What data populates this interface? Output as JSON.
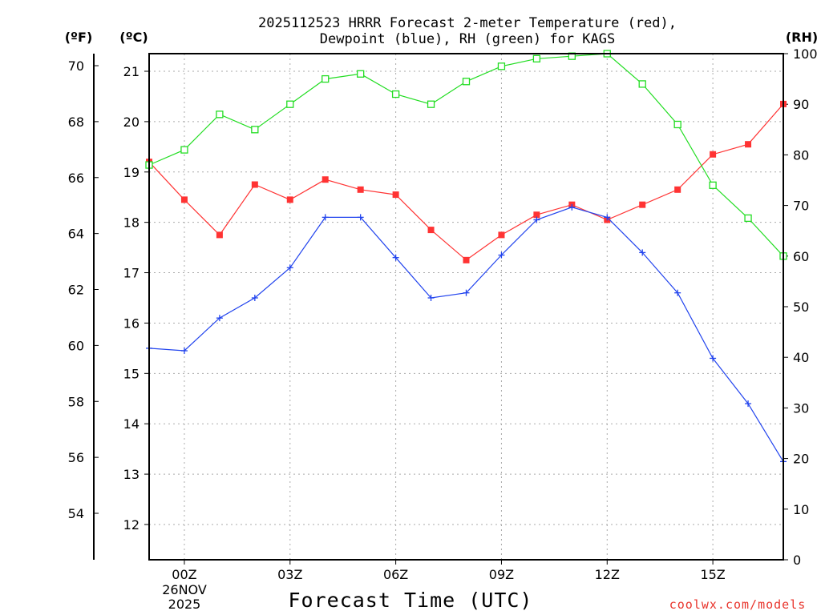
{
  "chart_data": {
    "type": "line",
    "title_line1": "2025112523 HRRR Forecast 2-meter Temperature (red),",
    "title_line2": "Dewpoint (blue), RH (green) for KAGS",
    "xlabel": "Forecast Time (UTC)",
    "credit": "coolwx.com/models",
    "unit_labels": {
      "fahrenheit": "(ºF)",
      "celsius": "(ºC)",
      "rh": "(RH)"
    },
    "x_range": [
      -1,
      17
    ],
    "x_ticks": [
      {
        "hour": 0,
        "label": "00Z"
      },
      {
        "hour": 3,
        "label": "03Z"
      },
      {
        "hour": 6,
        "label": "06Z"
      },
      {
        "hour": 9,
        "label": "09Z"
      },
      {
        "hour": 12,
        "label": "12Z"
      },
      {
        "hour": 15,
        "label": "15Z"
      }
    ],
    "date_label": {
      "hour": 0,
      "line1": "26NOV",
      "line2": "2025"
    },
    "celsius_axis": {
      "range": [
        11.3,
        21.35
      ],
      "ticks": [
        "12",
        "13",
        "14",
        "15",
        "16",
        "17",
        "18",
        "19",
        "20",
        "21"
      ]
    },
    "fahrenheit_axis": {
      "ticks": [
        "54",
        "56",
        "58",
        "60",
        "62",
        "64",
        "66",
        "68",
        "70"
      ]
    },
    "rh_axis": {
      "range": [
        0,
        100
      ],
      "ticks": [
        "0",
        "10",
        "20",
        "30",
        "40",
        "50",
        "60",
        "70",
        "80",
        "90",
        "100"
      ]
    },
    "hours": [
      -1,
      0,
      1,
      2,
      3,
      4,
      5,
      6,
      7,
      8,
      9,
      10,
      11,
      12,
      13,
      14,
      15,
      16,
      17
    ],
    "series": [
      {
        "name": "Temperature",
        "color": "#ff3333",
        "marker": "filled-square",
        "axis": "celsius",
        "values": [
          19.2,
          18.45,
          17.75,
          18.75,
          18.45,
          18.85,
          18.65,
          18.55,
          17.85,
          17.25,
          17.75,
          18.15,
          18.35,
          18.05,
          18.35,
          18.65,
          19.35,
          19.55,
          20.35
        ]
      },
      {
        "name": "Dewpoint",
        "color": "#2244ee",
        "marker": "plus",
        "axis": "celsius",
        "values": [
          15.5,
          15.45,
          16.1,
          16.5,
          17.1,
          18.1,
          18.1,
          17.3,
          16.5,
          16.6,
          17.35,
          18.05,
          18.3,
          18.1,
          17.4,
          16.6,
          15.3,
          14.4,
          13.25
        ]
      },
      {
        "name": "RH",
        "color": "#22dd22",
        "marker": "open-square",
        "axis": "rh",
        "values": [
          78,
          81,
          88,
          85,
          90,
          95,
          96,
          92,
          90,
          94.5,
          97.5,
          99,
          99.5,
          100,
          94,
          86,
          74,
          67.5,
          60
        ]
      }
    ]
  }
}
